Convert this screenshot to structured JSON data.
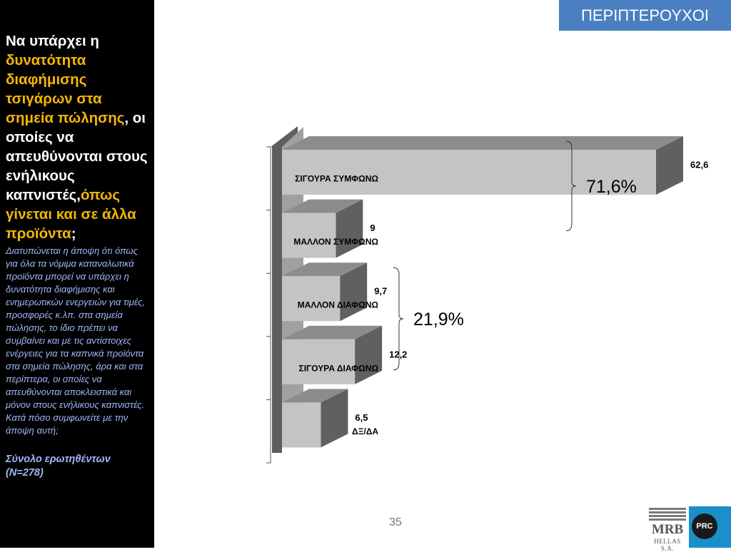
{
  "header": {
    "badge": "ΠΕΡΙΠΤΕΡΟΥΧΟΙ"
  },
  "sidebar": {
    "q_part1": "Να υπάρχει η ",
    "q_part2": "δυνατότητα διαφήμισης τσιγάρων στα σημεία πώλησης",
    "q_part3": ", οι οποίες να απευθύνονται στους ενήλικους καπνιστές,",
    "q_part4": "όπως γίνεται και σε άλλα προϊόντα",
    "q_part5": ";",
    "description": "Διατυπώνεται η άποψη ότι όπως για όλα τα νόμιμα καταναλωτικά προϊόντα μπορεί να υπάρχει η δυνατότητα διαφήμισης και ενημερωτικών ενεργειών για τιμές, προσφορές κ.λπ. στα σημεία πώλησης, το ίδιο πρέπει να συμβαίνει και με τις αντίστοιχες ενέργειες για τα καπνικά προϊόντα στα σημεία πώλησης, άρα και στα περίπτερα, οι οποίες να απευθύνονται αποκλειστικά και μόνον στους ενήλικους καπνιστές. Κατά πόσο συμφωνείτε με την άποψη αυτή;",
    "base_label": "Σύνολο ερωτηθέντων (N=278)"
  },
  "chart_data": {
    "type": "bar",
    "orientation": "horizontal",
    "style": "3d",
    "categories": [
      "ΣΙΓΟΥΡΑ ΣΥΜΦΩΝΩ",
      "ΜΑΛΛΟΝ ΣΥΜΦΩΝΩ",
      "ΜΑΛΛΟΝ ΔΙΑΦΩΝΩ",
      "ΣΙΓΟΥΡΑ ΔΙΑΦΩΝΩ",
      "ΔΞ/ΔΑ"
    ],
    "values": [
      62.6,
      9,
      9.7,
      12.2,
      6.5
    ],
    "value_labels": [
      "62,6",
      "9",
      "9,7",
      "12,2",
      "6,5"
    ],
    "groups": [
      {
        "label": "71,6%",
        "categories": [
          "ΣΙΓΟΥΡΑ ΣΥΜΦΩΝΩ",
          "ΜΑΛΛΟΝ ΣΥΜΦΩΝΩ"
        ]
      },
      {
        "label": "21,9%",
        "categories": [
          "ΜΑΛΛΟΝ ΔΙΑΦΩΝΩ",
          "ΣΙΓΟΥΡΑ ΔΙΑΦΩΝΩ"
        ]
      }
    ],
    "colors": {
      "bar_front": "#c4c4c4",
      "bar_top": "#8c8c8c",
      "bar_side": "#606060",
      "wall": "#a0a0a0",
      "wall_side": "#5e5e5e"
    }
  },
  "footer": {
    "page_number": "35",
    "logo_mrb": "MRB",
    "logo_mrb_sub": "HELLAS S.A.",
    "logo_prc": "PRC"
  }
}
